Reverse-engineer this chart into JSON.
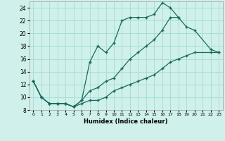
{
  "xlabel": "Humidex (Indice chaleur)",
  "bg_color": "#cff0eb",
  "line_color": "#1a6b5a",
  "grid_color": "#aaddd8",
  "xlim": [
    -0.5,
    23.5
  ],
  "ylim": [
    8,
    25
  ],
  "xticks": [
    0,
    1,
    2,
    3,
    4,
    5,
    6,
    7,
    8,
    9,
    10,
    11,
    12,
    13,
    14,
    15,
    16,
    17,
    18,
    19,
    20,
    21,
    22,
    23
  ],
  "yticks": [
    8,
    10,
    12,
    14,
    16,
    18,
    20,
    22,
    24
  ],
  "curve1_x": [
    0,
    1,
    2,
    3,
    4,
    5,
    6,
    7,
    8,
    9,
    10,
    11,
    12,
    13,
    14,
    15,
    16,
    17,
    18
  ],
  "curve1_y": [
    12.5,
    10,
    9,
    9,
    9,
    8.5,
    9.5,
    15.5,
    18,
    17,
    18.5,
    22,
    22.5,
    22.5,
    22.5,
    23,
    24.8,
    24,
    22.5
  ],
  "curve2_x": [
    0,
    1,
    2,
    3,
    4,
    5,
    6,
    7,
    8,
    9,
    10,
    11,
    12,
    13,
    14,
    15,
    16,
    17,
    18,
    19,
    20,
    22,
    23
  ],
  "curve2_y": [
    12.5,
    10,
    9,
    9,
    9,
    8.5,
    9.5,
    11,
    11.5,
    12.5,
    13,
    14.5,
    16,
    17,
    18,
    19,
    20.5,
    22.5,
    22.5,
    21,
    20.5,
    17.5,
    17
  ],
  "curve3_x": [
    0,
    1,
    2,
    3,
    4,
    5,
    6,
    7,
    8,
    9,
    10,
    11,
    12,
    13,
    14,
    15,
    16,
    17,
    18,
    19,
    20,
    22,
    23
  ],
  "curve3_y": [
    12.5,
    10,
    9,
    9,
    9,
    8.5,
    9,
    9.5,
    9.5,
    10,
    11,
    11.5,
    12,
    12.5,
    13,
    13.5,
    14.5,
    15.5,
    16,
    16.5,
    17,
    17,
    17
  ]
}
